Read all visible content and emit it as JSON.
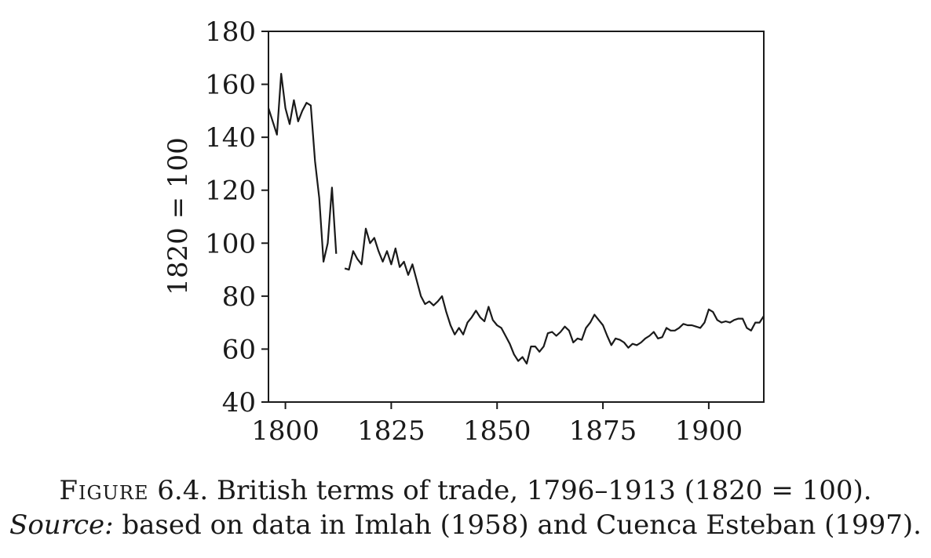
{
  "caption": {
    "figure_label": "Figure",
    "title": "6.4. British terms of trade, 1796–1913 (1820 = 100).",
    "source_label": "Source:",
    "source_text": "based on data in Imlah (1958) and Cuenca Esteban (1997)."
  },
  "chart_data": {
    "type": "line",
    "title": "",
    "xlabel": "",
    "ylabel": "1820 = 100",
    "xlim": [
      1796,
      1913
    ],
    "ylim": [
      40,
      180
    ],
    "xticks": [
      1800,
      1825,
      1850,
      1875,
      1900
    ],
    "yticks": [
      40,
      60,
      80,
      100,
      120,
      140,
      160,
      180
    ],
    "grid": false,
    "legend": "none",
    "line_color": "#1a1a1a",
    "series": [
      {
        "segments": [
          {
            "x": [
              1796,
              1797,
              1798,
              1799,
              1800,
              1801,
              1802,
              1803,
              1804,
              1805,
              1806,
              1807,
              1808,
              1809,
              1810,
              1811,
              1812
            ],
            "y": [
              151,
              146,
              141,
              164,
              151,
              145,
              154,
              146,
              150,
              153,
              152,
              131,
              117,
              93,
              100,
              121,
              96
            ]
          },
          {
            "x": [
              1814,
              1815,
              1816,
              1817,
              1818,
              1819,
              1820,
              1821,
              1822,
              1823,
              1824,
              1825,
              1826,
              1827,
              1828,
              1829,
              1830,
              1831,
              1832,
              1833,
              1834,
              1835,
              1836,
              1837,
              1838,
              1839,
              1840,
              1841,
              1842,
              1843,
              1844,
              1845,
              1846,
              1847,
              1848,
              1849,
              1850,
              1851,
              1852,
              1853,
              1854,
              1855,
              1856,
              1857,
              1858,
              1859,
              1860,
              1861,
              1862,
              1863,
              1864,
              1865,
              1866,
              1867,
              1868,
              1869,
              1870,
              1871,
              1872,
              1873,
              1874,
              1875,
              1876,
              1877,
              1878,
              1879,
              1880,
              1881,
              1882,
              1883,
              1884,
              1885,
              1886,
              1887,
              1888,
              1889,
              1890,
              1891,
              1892,
              1893,
              1894,
              1895,
              1896,
              1897,
              1898,
              1899,
              1900,
              1901,
              1902,
              1903,
              1904,
              1905,
              1906,
              1907,
              1908,
              1909,
              1910,
              1911,
              1912,
              1913
            ],
            "y": [
              90.5,
              90,
              97,
              94,
              92,
              105.5,
              100,
              102,
              97,
              93,
              97,
              92,
              98,
              91,
              93,
              88,
              92,
              86,
              80,
              77,
              78,
              76.5,
              78,
              80,
              74,
              69,
              65.5,
              68,
              65.5,
              70,
              72,
              74.5,
              72,
              70.5,
              76,
              71,
              69,
              68,
              65,
              62,
              58,
              55.5,
              57,
              54.5,
              61,
              61,
              59,
              61,
              66,
              66.5,
              65,
              66.5,
              68.5,
              67,
              62.5,
              64,
              63.5,
              68,
              70,
              73,
              71,
              69,
              65,
              61.5,
              64,
              63.5,
              62.5,
              60.5,
              62,
              61.5,
              62.5,
              64,
              65,
              66.5,
              64,
              64.5,
              68,
              67,
              67,
              68,
              69.5,
              69,
              69,
              68.5,
              68,
              70,
              75,
              74,
              71,
              70,
              70.5,
              70,
              71,
              71.5,
              71.5,
              68,
              67,
              70,
              70,
              72.5
            ]
          }
        ]
      }
    ]
  }
}
